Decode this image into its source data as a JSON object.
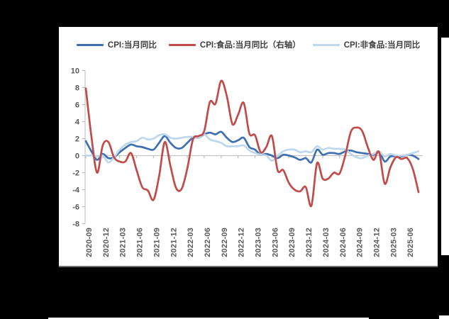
{
  "page": {
    "background": "#000000",
    "panel_background": "#ffffff"
  },
  "chart_data": {
    "type": "line",
    "title": "",
    "xlabel": "",
    "ylabel": "",
    "ylim": [
      -8,
      10
    ],
    "y_ticks": [
      10,
      8,
      6,
      4,
      2,
      0,
      -2,
      -4,
      -6,
      -8
    ],
    "grid": "zero-line-only",
    "legend_position": "top",
    "x_tick_labels": [
      "2020-09",
      "2020-12",
      "2021-03",
      "2021-06",
      "2021-09",
      "2021-12",
      "2022-03",
      "2022-06",
      "2022-09",
      "2022-12",
      "2023-03",
      "2023-06",
      "2023-09",
      "2023-12",
      "2024-03",
      "2024-06",
      "2024-09",
      "2024-12",
      "2025-03",
      "2025-06"
    ],
    "months": [
      "2020-09",
      "2020-10",
      "2020-11",
      "2020-12",
      "2021-01",
      "2021-02",
      "2021-03",
      "2021-04",
      "2021-05",
      "2021-06",
      "2021-07",
      "2021-08",
      "2021-09",
      "2021-10",
      "2021-11",
      "2021-12",
      "2022-01",
      "2022-02",
      "2022-03",
      "2022-04",
      "2022-05",
      "2022-06",
      "2022-07",
      "2022-08",
      "2022-09",
      "2022-10",
      "2022-11",
      "2022-12",
      "2023-01",
      "2023-02",
      "2023-03",
      "2023-04",
      "2023-05",
      "2023-06",
      "2023-07",
      "2023-08",
      "2023-09",
      "2023-10",
      "2023-11",
      "2023-12",
      "2024-01",
      "2024-02",
      "2024-03",
      "2024-04",
      "2024-05",
      "2024-06",
      "2024-07",
      "2024-08",
      "2024-09",
      "2024-10",
      "2024-11",
      "2024-12",
      "2025-01",
      "2025-02",
      "2025-03",
      "2025-04",
      "2025-05",
      "2025-06",
      "2025-07",
      "2025-08"
    ],
    "series": [
      {
        "name": "CPI:当月同比",
        "axis": "left",
        "color": "#3E6FB2",
        "values": [
          1.7,
          0.5,
          -0.5,
          0.2,
          -0.3,
          -0.2,
          0.4,
          0.9,
          1.3,
          1.1,
          1.0,
          0.8,
          0.7,
          1.5,
          2.3,
          1.5,
          0.9,
          0.9,
          1.5,
          2.1,
          2.1,
          2.5,
          2.7,
          2.5,
          2.8,
          2.1,
          1.6,
          1.8,
          2.1,
          1.0,
          0.7,
          0.1,
          0.2,
          0.0,
          -0.3,
          0.1,
          0.0,
          -0.2,
          -0.5,
          -0.3,
          -0.8,
          0.7,
          0.1,
          0.3,
          0.3,
          0.2,
          0.5,
          0.6,
          0.4,
          0.3,
          0.2,
          0.1,
          0.5,
          -0.7,
          -0.1,
          -0.1,
          -0.1,
          0.1,
          0.0,
          -0.4
        ]
      },
      {
        "name": "CPI:食品:当月同比（右轴）",
        "axis": "right",
        "color": "#C14B49",
        "values": [
          7.9,
          2.2,
          -2.0,
          1.2,
          1.6,
          -0.2,
          -0.7,
          -0.7,
          0.3,
          -1.7,
          -3.7,
          -4.1,
          -5.2,
          -2.4,
          1.6,
          -1.2,
          -3.8,
          -3.9,
          -1.5,
          1.9,
          2.3,
          2.9,
          6.3,
          6.1,
          8.8,
          7.0,
          3.7,
          4.8,
          6.2,
          2.6,
          2.4,
          0.4,
          1.0,
          2.3,
          -1.7,
          -1.7,
          -3.2,
          -4.0,
          -4.2,
          -3.7,
          -5.9,
          -0.9,
          -2.7,
          -2.7,
          -2.0,
          -2.1,
          0.0,
          2.8,
          3.3,
          2.9,
          1.0,
          -0.5,
          0.4,
          -3.3,
          -1.4,
          -0.2,
          -0.4,
          -0.3,
          -1.6,
          -4.3
        ]
      },
      {
        "name": "CPI:非食品:当月同比",
        "axis": "left",
        "color": "#BDD7EE",
        "values": [
          0.0,
          0.0,
          -0.1,
          0.0,
          -0.8,
          -0.2,
          0.7,
          1.3,
          1.6,
          1.7,
          2.1,
          1.9,
          2.0,
          2.4,
          2.5,
          2.1,
          2.0,
          2.1,
          2.2,
          2.2,
          2.1,
          2.5,
          1.9,
          1.7,
          1.5,
          1.1,
          1.1,
          1.1,
          1.2,
          0.6,
          0.3,
          0.1,
          0.0,
          -0.6,
          0.0,
          0.5,
          0.7,
          0.7,
          0.4,
          0.5,
          0.4,
          1.1,
          0.7,
          0.9,
          0.8,
          0.8,
          0.7,
          0.2,
          -0.2,
          -0.3,
          0.0,
          0.2,
          0.5,
          -0.1,
          0.2,
          0.0,
          0.0,
          0.1,
          0.3,
          0.5
        ]
      }
    ],
    "draw_order": [
      0,
      2,
      1
    ],
    "style": {
      "axis_color": "#C6C6C6",
      "tick_color": "#BDBDBD",
      "tick_label_color": "#595959",
      "line_width": 2.7
    }
  }
}
